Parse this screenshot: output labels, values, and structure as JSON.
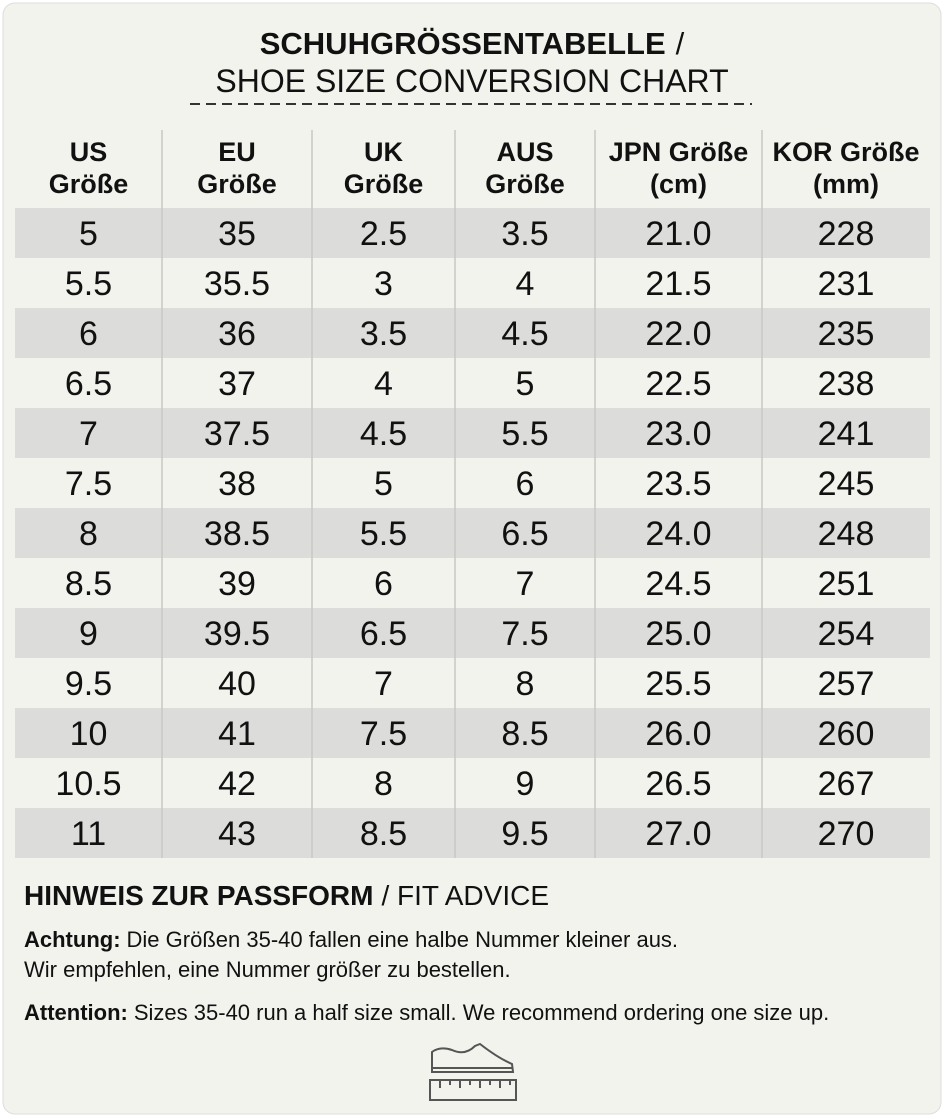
{
  "header": {
    "title": "SCHUHGRÖSSENTABELLE",
    "title_separator": "/",
    "subtitle": "SHOE SIZE CONVERSION CHART"
  },
  "table": {
    "columns": [
      [
        "US",
        "Größe"
      ],
      [
        "EU",
        "Größe"
      ],
      [
        "UK",
        "Größe"
      ],
      [
        "AUS",
        "Größe"
      ],
      [
        "JPN Größe",
        "(cm)"
      ],
      [
        "KOR Größe",
        "(mm)"
      ]
    ],
    "rows": [
      [
        "5",
        "35",
        "2.5",
        "3.5",
        "21.0",
        "228"
      ],
      [
        "5.5",
        "35.5",
        "3",
        "4",
        "21.5",
        "231"
      ],
      [
        "6",
        "36",
        "3.5",
        "4.5",
        "22.0",
        "235"
      ],
      [
        "6.5",
        "37",
        "4",
        "5",
        "22.5",
        "238"
      ],
      [
        "7",
        "37.5",
        "4.5",
        "5.5",
        "23.0",
        "241"
      ],
      [
        "7.5",
        "38",
        "5",
        "6",
        "23.5",
        "245"
      ],
      [
        "8",
        "38.5",
        "5.5",
        "6.5",
        "24.0",
        "248"
      ],
      [
        "8.5",
        "39",
        "6",
        "7",
        "24.5",
        "251"
      ],
      [
        "9",
        "39.5",
        "6.5",
        "7.5",
        "25.0",
        "254"
      ],
      [
        "9.5",
        "40",
        "7",
        "8",
        "25.5",
        "257"
      ],
      [
        "10",
        "41",
        "7.5",
        "8.5",
        "26.0",
        "260"
      ],
      [
        "10.5",
        "42",
        "8",
        "9",
        "26.5",
        "267"
      ],
      [
        "11",
        "43",
        "8.5",
        "9.5",
        "27.0",
        "270"
      ]
    ]
  },
  "fit_advice": {
    "heading": "HINWEIS ZUR PASSFORM",
    "heading_rest": "/ FIT ADVICE",
    "german_label": "Achtung:",
    "german_text": "Die Größen 35-40 fallen eine halbe Nummer kleiner aus.",
    "german_text_2": "Wir empfehlen, eine Nummer größer zu bestellen.",
    "english_label": "Attention:",
    "english_text": "Sizes 35-40 run a half size small. We recommend ordering one size up."
  }
}
